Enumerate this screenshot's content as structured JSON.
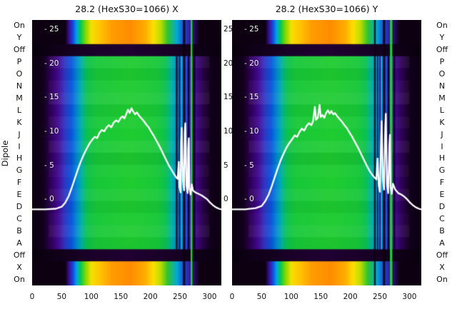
{
  "chart_data": {
    "type": "heatmap",
    "description": "Two dipole-scan heatmap panels with white overlay curves",
    "curve_color": "#ffffff",
    "background": "#ffffff",
    "axes": {
      "ylabel": "Dipole",
      "x_range": [
        0,
        320
      ],
      "x_ticks": [
        0,
        50,
        100,
        150,
        200,
        250,
        300
      ],
      "overlay_range": [
        -12.6,
        26.5
      ],
      "overlay_ticks": [
        {
          "value": 25,
          "label_left": "- 25",
          "label_right": "25"
        },
        {
          "value": 20,
          "label_left": "- 20",
          "label_right": "20"
        },
        {
          "value": 15,
          "label_left": "- 15",
          "label_right": "15"
        },
        {
          "value": 10,
          "label_left": "- 10",
          "label_right": "10"
        },
        {
          "value": 5,
          "label_left": "- 5",
          "label_right": "5"
        },
        {
          "value": 0,
          "label_left": "- 0",
          "label_right": "0"
        }
      ]
    },
    "rows": [
      {
        "label": "On",
        "band": "rainbow",
        "tint": 0
      },
      {
        "label": "Y",
        "band": "rainbow",
        "tint": 0
      },
      {
        "label": "Off",
        "band": "dark",
        "tint": 0
      },
      {
        "label": "P",
        "band": "mid",
        "tint": 0.05
      },
      {
        "label": "O",
        "band": "mid",
        "tint": -0.04
      },
      {
        "label": "N",
        "band": "mid",
        "tint": 0.03
      },
      {
        "label": "M",
        "band": "mid",
        "tint": 0.07
      },
      {
        "label": "L",
        "band": "mid",
        "tint": -0.03
      },
      {
        "label": "K",
        "band": "mid",
        "tint": 0.04
      },
      {
        "label": "J",
        "band": "mid",
        "tint": 0
      },
      {
        "label": "I",
        "band": "mid",
        "tint": 0.06
      },
      {
        "label": "H",
        "band": "mid",
        "tint": -0.05
      },
      {
        "label": "G",
        "band": "mid",
        "tint": 0.03
      },
      {
        "label": "F",
        "band": "mid",
        "tint": 0
      },
      {
        "label": "E",
        "band": "mid",
        "tint": 0.05
      },
      {
        "label": "D",
        "band": "mid",
        "tint": -0.04
      },
      {
        "label": "C",
        "band": "mid",
        "tint": 0.02
      },
      {
        "label": "B",
        "band": "mid",
        "tint": 0.06
      },
      {
        "label": "A",
        "band": "mid",
        "tint": -0.03
      },
      {
        "label": "Off",
        "band": "dark",
        "tint": 0
      },
      {
        "label": "X",
        "band": "rainbow",
        "tint": 0
      },
      {
        "label": "On",
        "band": "rainbow",
        "tint": 0
      }
    ],
    "colormaps": {
      "rainbow": [
        [
          0,
          "#0c0011"
        ],
        [
          0.175,
          "#0c0011"
        ],
        [
          0.195,
          "#3a1090"
        ],
        [
          0.215,
          "#1545e0"
        ],
        [
          0.235,
          "#00a5e6"
        ],
        [
          0.255,
          "#00c853"
        ],
        [
          0.283,
          "#86d800"
        ],
        [
          0.313,
          "#f5e000"
        ],
        [
          0.36,
          "#ffc400"
        ],
        [
          0.42,
          "#ff9d00"
        ],
        [
          0.52,
          "#ff8c00"
        ],
        [
          0.6,
          "#ffae00"
        ],
        [
          0.64,
          "#ffe000"
        ],
        [
          0.68,
          "#b8dc00"
        ],
        [
          0.717,
          "#2fc42f"
        ],
        [
          0.766,
          "#00a8d8"
        ],
        [
          0.805,
          "#2143d6"
        ],
        [
          0.843,
          "#371182"
        ],
        [
          0.886,
          "#0c0011"
        ],
        [
          1,
          "#0c0011"
        ]
      ],
      "mid": [
        [
          0,
          "#0c0011"
        ],
        [
          0.06,
          "#12001c"
        ],
        [
          0.1,
          "#30005c"
        ],
        [
          0.14,
          "#440c96"
        ],
        [
          0.17,
          "#3333c0"
        ],
        [
          0.207,
          "#0a55dc"
        ],
        [
          0.237,
          "#008cd2"
        ],
        [
          0.264,
          "#00b49b"
        ],
        [
          0.29,
          "#0cc24e"
        ],
        [
          0.34,
          "#18c838"
        ],
        [
          0.52,
          "#1fcc30"
        ],
        [
          0.66,
          "#18c838"
        ],
        [
          0.705,
          "#0cc24e"
        ],
        [
          0.735,
          "#00b49b"
        ],
        [
          0.766,
          "#008cd2"
        ],
        [
          0.79,
          "#0a55dc"
        ],
        [
          0.82,
          "#3333c0"
        ],
        [
          0.855,
          "#440c96"
        ],
        [
          0.893,
          "#30005c"
        ],
        [
          0.94,
          "#12001c"
        ],
        [
          1,
          "#0c0011"
        ]
      ],
      "dark": [
        [
          0,
          "#08000c"
        ],
        [
          0.12,
          "#100018"
        ],
        [
          0.3,
          "#1a0028"
        ],
        [
          0.5,
          "#200032"
        ],
        [
          0.7,
          "#1a0028"
        ],
        [
          0.88,
          "#100018"
        ],
        [
          1,
          "#08000c"
        ]
      ]
    },
    "panels": [
      {
        "title": "28.2 (HexS30=1066) X",
        "streaks": [
          {
            "x": 243,
            "w": 3,
            "color": "#0c0011",
            "scope": "mid",
            "alpha": 0.85
          },
          {
            "x": 248,
            "w": 2,
            "color": "#0c0011",
            "scope": "mid",
            "alpha": 0.7
          },
          {
            "x": 252,
            "w": 2,
            "color": "#00d2e6",
            "scope": "mid",
            "alpha": 0.9
          },
          {
            "x": 255,
            "w": 4,
            "color": "#0c0011",
            "scope": "all",
            "alpha": 0.85
          },
          {
            "x": 260,
            "w": 2,
            "color": "#1e50e6",
            "scope": "mid",
            "alpha": 0.9
          },
          {
            "x": 263,
            "w": 3,
            "color": "#0c0011",
            "scope": "mid",
            "alpha": 0.85
          },
          {
            "x": 268,
            "w": 3,
            "color": "#2ad43c",
            "scope": "all",
            "alpha": 0.95
          },
          {
            "x": 272,
            "w": 4,
            "color": "#0c0011",
            "scope": "mid",
            "alpha": 0.8
          }
        ],
        "curve": [
          [
            0,
            -1.4
          ],
          [
            22,
            -1.4
          ],
          [
            40,
            -1.3
          ],
          [
            50,
            -1.0
          ],
          [
            56,
            -0.4
          ],
          [
            62,
            0.6
          ],
          [
            67,
            1.8
          ],
          [
            72,
            3.1
          ],
          [
            77,
            4.4
          ],
          [
            82,
            5.6
          ],
          [
            87,
            6.6
          ],
          [
            92,
            7.5
          ],
          [
            97,
            8.3
          ],
          [
            102,
            8.9
          ],
          [
            106,
            9.3
          ],
          [
            110,
            9.1
          ],
          [
            114,
            9.9
          ],
          [
            118,
            10.3
          ],
          [
            122,
            10.1
          ],
          [
            126,
            10.7
          ],
          [
            130,
            11.0
          ],
          [
            134,
            10.7
          ],
          [
            138,
            11.4
          ],
          [
            142,
            11.7
          ],
          [
            146,
            11.5
          ],
          [
            150,
            12.1
          ],
          [
            153,
            12.3
          ],
          [
            156,
            12.0
          ],
          [
            159,
            12.6
          ],
          [
            162,
            13.3
          ],
          [
            165,
            12.8
          ],
          [
            168,
            13.5
          ],
          [
            171,
            13.0
          ],
          [
            174,
            12.6
          ],
          [
            177,
            12.9
          ],
          [
            181,
            12.4
          ],
          [
            185,
            12.0
          ],
          [
            189,
            11.6
          ],
          [
            193,
            11.1
          ],
          [
            197,
            10.7
          ],
          [
            201,
            10.1
          ],
          [
            206,
            9.4
          ],
          [
            211,
            8.6
          ],
          [
            216,
            7.8
          ],
          [
            221,
            6.9
          ],
          [
            226,
            6.0
          ],
          [
            231,
            5.1
          ],
          [
            236,
            4.4
          ],
          [
            240,
            3.8
          ],
          [
            243,
            3.4
          ],
          [
            246,
            3.1
          ],
          [
            248,
            5.6
          ],
          [
            249,
            1.9
          ],
          [
            251,
            1.1
          ],
          [
            252,
            8.6
          ],
          [
            253,
            10.6
          ],
          [
            255,
            2.9
          ],
          [
            257,
            1.4
          ],
          [
            258,
            9.9
          ],
          [
            259,
            11.3
          ],
          [
            261,
            2.1
          ],
          [
            263,
            1.0
          ],
          [
            264,
            7.6
          ],
          [
            265,
            9.1
          ],
          [
            266,
            1.7
          ],
          [
            268,
            0.8
          ],
          [
            270,
            2.3
          ],
          [
            272,
            1.4
          ],
          [
            276,
            1.1
          ],
          [
            281,
            0.9
          ],
          [
            286,
            0.7
          ],
          [
            291,
            0.4
          ],
          [
            296,
            0.1
          ],
          [
            301,
            -0.4
          ],
          [
            306,
            -0.8
          ],
          [
            311,
            -1.1
          ],
          [
            316,
            -1.3
          ],
          [
            320,
            -1.4
          ]
        ]
      },
      {
        "title": "28.2 (HexS30=1066) Y",
        "streaks": [
          {
            "x": 240,
            "w": 3,
            "color": "#0c0011",
            "scope": "all",
            "alpha": 0.8
          },
          {
            "x": 245,
            "w": 2,
            "color": "#0c0011",
            "scope": "mid",
            "alpha": 0.7
          },
          {
            "x": 249,
            "w": 2,
            "color": "#3a0a78",
            "scope": "mid",
            "alpha": 0.8
          },
          {
            "x": 252,
            "w": 2,
            "color": "#00d2e6",
            "scope": "mid",
            "alpha": 0.9
          },
          {
            "x": 255,
            "w": 4,
            "color": "#0c0011",
            "scope": "all",
            "alpha": 0.85
          },
          {
            "x": 260,
            "w": 2,
            "color": "#1e50e6",
            "scope": "mid",
            "alpha": 0.9
          },
          {
            "x": 263,
            "w": 3,
            "color": "#0c0011",
            "scope": "mid",
            "alpha": 0.85
          },
          {
            "x": 267,
            "w": 4,
            "color": "#2ad43c",
            "scope": "all",
            "alpha": 0.95
          },
          {
            "x": 273,
            "w": 3,
            "color": "#0c0011",
            "scope": "mid",
            "alpha": 0.8
          }
        ],
        "curve": [
          [
            0,
            -1.4
          ],
          [
            22,
            -1.4
          ],
          [
            40,
            -1.2
          ],
          [
            50,
            -0.9
          ],
          [
            56,
            -0.2
          ],
          [
            62,
            0.8
          ],
          [
            67,
            2.0
          ],
          [
            72,
            3.3
          ],
          [
            77,
            4.6
          ],
          [
            82,
            5.8
          ],
          [
            87,
            6.8
          ],
          [
            92,
            7.7
          ],
          [
            97,
            8.4
          ],
          [
            102,
            9.0
          ],
          [
            106,
            9.5
          ],
          [
            110,
            9.3
          ],
          [
            114,
            10.0
          ],
          [
            118,
            10.5
          ],
          [
            122,
            10.2
          ],
          [
            126,
            10.9
          ],
          [
            130,
            11.3
          ],
          [
            134,
            11.0
          ],
          [
            137,
            11.6
          ],
          [
            140,
            13.7
          ],
          [
            142,
            11.8
          ],
          [
            145,
            12.1
          ],
          [
            148,
            14.0
          ],
          [
            150,
            12.2
          ],
          [
            153,
            12.5
          ],
          [
            156,
            12.1
          ],
          [
            159,
            12.8
          ],
          [
            162,
            13.2
          ],
          [
            165,
            12.7
          ],
          [
            168,
            13.1
          ],
          [
            171,
            12.6
          ],
          [
            174,
            12.8
          ],
          [
            178,
            12.3
          ],
          [
            182,
            11.9
          ],
          [
            186,
            11.5
          ],
          [
            190,
            11.0
          ],
          [
            194,
            10.6
          ],
          [
            198,
            10.0
          ],
          [
            203,
            9.3
          ],
          [
            208,
            8.5
          ],
          [
            213,
            7.7
          ],
          [
            218,
            6.8
          ],
          [
            223,
            5.9
          ],
          [
            228,
            5.0
          ],
          [
            233,
            4.2
          ],
          [
            237,
            3.7
          ],
          [
            241,
            3.3
          ],
          [
            244,
            3.0
          ],
          [
            246,
            6.1
          ],
          [
            248,
            2.1
          ],
          [
            250,
            1.2
          ],
          [
            252,
            9.1
          ],
          [
            253,
            11.6
          ],
          [
            255,
            3.1
          ],
          [
            257,
            1.5
          ],
          [
            259,
            10.6
          ],
          [
            260,
            12.7
          ],
          [
            262,
            2.3
          ],
          [
            264,
            1.0
          ],
          [
            266,
            8.1
          ],
          [
            267,
            9.6
          ],
          [
            268,
            1.9
          ],
          [
            270,
            0.9
          ],
          [
            272,
            2.4
          ],
          [
            276,
            1.5
          ],
          [
            281,
            1.0
          ],
          [
            286,
            0.8
          ],
          [
            291,
            0.5
          ],
          [
            296,
            0.1
          ],
          [
            301,
            -0.4
          ],
          [
            306,
            -0.8
          ],
          [
            311,
            -1.1
          ],
          [
            316,
            -1.3
          ],
          [
            320,
            -1.4
          ]
        ]
      }
    ]
  }
}
